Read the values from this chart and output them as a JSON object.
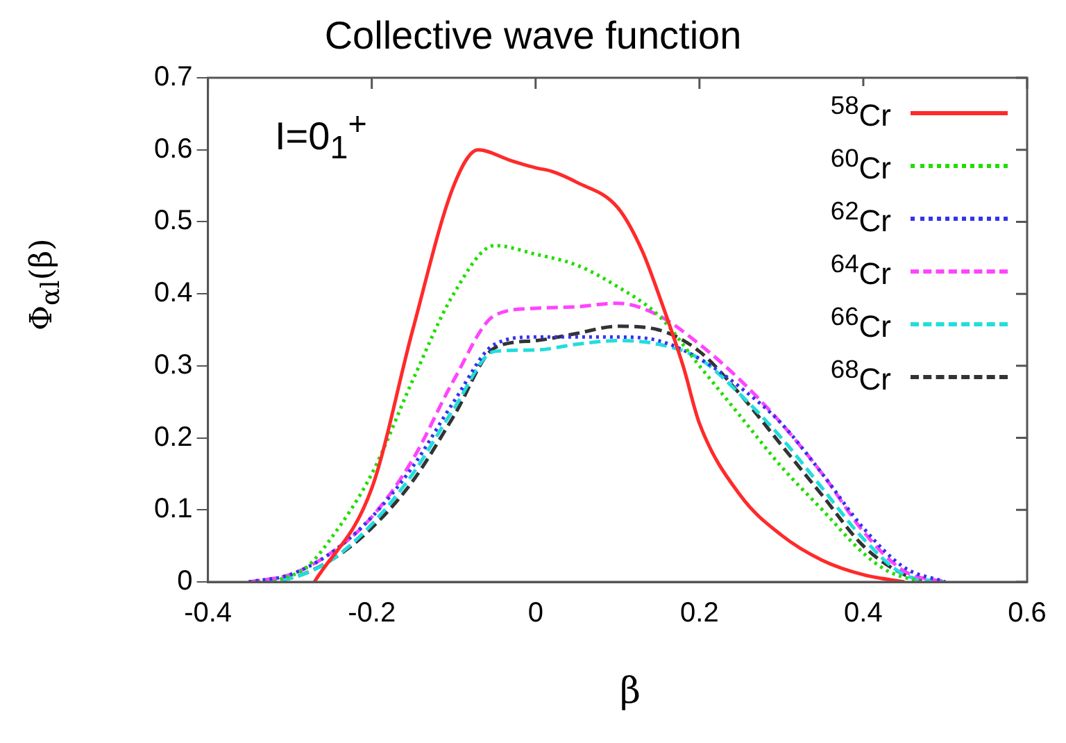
{
  "chart_data": {
    "type": "line",
    "title": "Collective wave function",
    "xlabel": "β",
    "ylabel": "Φ$_{αl}$(β)",
    "annotations": [
      "I=0$_{1}$$^{+}$"
    ],
    "xlim": [
      -0.4,
      0.6
    ],
    "xticks": [
      -0.4,
      -0.2,
      0,
      0.2,
      0.4,
      0.6
    ],
    "ylim": [
      0,
      0.7
    ],
    "yticks": [
      0,
      0.1,
      0.2,
      0.3,
      0.4,
      0.5,
      0.6,
      0.7
    ],
    "grid": false,
    "legend": "top right",
    "marker": "none",
    "series": [
      {
        "name": "$^{58}$Cr",
        "color": "#ff2a2a",
        "line_style": "solid",
        "x": [
          -0.27,
          -0.2,
          -0.15,
          -0.1,
          -0.07,
          -0.03,
          0,
          0.02,
          0.05,
          0.1,
          0.13,
          0.15,
          0.18,
          0.2,
          0.25,
          0.3,
          0.35,
          0.4,
          0.45
        ],
        "values": [
          0,
          0.13,
          0.35,
          0.55,
          0.6,
          0.585,
          0.575,
          0.57,
          0.555,
          0.52,
          0.46,
          0.4,
          0.3,
          0.22,
          0.12,
          0.065,
          0.03,
          0.01,
          0
        ]
      },
      {
        "name": "$^{60}$Cr",
        "color": "#22dd00",
        "line_style": "dotted",
        "x": [
          -0.32,
          -0.28,
          -0.25,
          -0.2,
          -0.15,
          -0.1,
          -0.05,
          0,
          0.05,
          0.1,
          0.15,
          0.2,
          0.25,
          0.3,
          0.35,
          0.4,
          0.43,
          0.47
        ],
        "values": [
          0,
          0.02,
          0.06,
          0.15,
          0.28,
          0.4,
          0.467,
          0.455,
          0.44,
          0.41,
          0.37,
          0.3,
          0.23,
          0.16,
          0.1,
          0.04,
          0.015,
          0
        ]
      },
      {
        "name": "$^{62}$Cr",
        "color": "#3333ee",
        "line_style": "dotted",
        "x": [
          -0.35,
          -0.3,
          -0.25,
          -0.2,
          -0.15,
          -0.1,
          -0.05,
          0,
          0.05,
          0.1,
          0.15,
          0.2,
          0.25,
          0.3,
          0.35,
          0.4,
          0.45,
          0.5
        ],
        "values": [
          0,
          0.01,
          0.04,
          0.09,
          0.16,
          0.25,
          0.33,
          0.34,
          0.34,
          0.34,
          0.335,
          0.31,
          0.27,
          0.22,
          0.15,
          0.075,
          0.02,
          0
        ]
      },
      {
        "name": "$^{64}$Cr",
        "color": "#ff44ff",
        "line_style": "dashed",
        "x": [
          -0.35,
          -0.3,
          -0.25,
          -0.2,
          -0.15,
          -0.1,
          -0.05,
          0,
          0.05,
          0.1,
          0.15,
          0.2,
          0.25,
          0.3,
          0.35,
          0.4,
          0.45,
          0.5
        ],
        "values": [
          0,
          0.01,
          0.04,
          0.09,
          0.17,
          0.28,
          0.37,
          0.38,
          0.382,
          0.387,
          0.37,
          0.33,
          0.28,
          0.22,
          0.15,
          0.07,
          0.015,
          0
        ]
      },
      {
        "name": "$^{66}$Cr",
        "color": "#22dddd",
        "line_style": "dashed",
        "x": [
          -0.35,
          -0.3,
          -0.25,
          -0.2,
          -0.15,
          -0.1,
          -0.05,
          0,
          0.05,
          0.1,
          0.15,
          0.2,
          0.25,
          0.3,
          0.35,
          0.4,
          0.45,
          0.5
        ],
        "values": [
          0,
          0.005,
          0.03,
          0.08,
          0.15,
          0.24,
          0.32,
          0.322,
          0.33,
          0.335,
          0.33,
          0.31,
          0.26,
          0.2,
          0.13,
          0.06,
          0.01,
          0
        ]
      },
      {
        "name": "$^{68}$Cr",
        "color": "#333333",
        "line_style": "dashed",
        "x": [
          -0.35,
          -0.3,
          -0.25,
          -0.2,
          -0.15,
          -0.1,
          -0.05,
          0,
          0.05,
          0.1,
          0.15,
          0.2,
          0.25,
          0.3,
          0.35,
          0.4,
          0.45,
          0.48
        ],
        "values": [
          0,
          0.005,
          0.03,
          0.075,
          0.14,
          0.23,
          0.325,
          0.335,
          0.345,
          0.355,
          0.35,
          0.32,
          0.26,
          0.19,
          0.12,
          0.05,
          0.01,
          0
        ]
      }
    ]
  }
}
